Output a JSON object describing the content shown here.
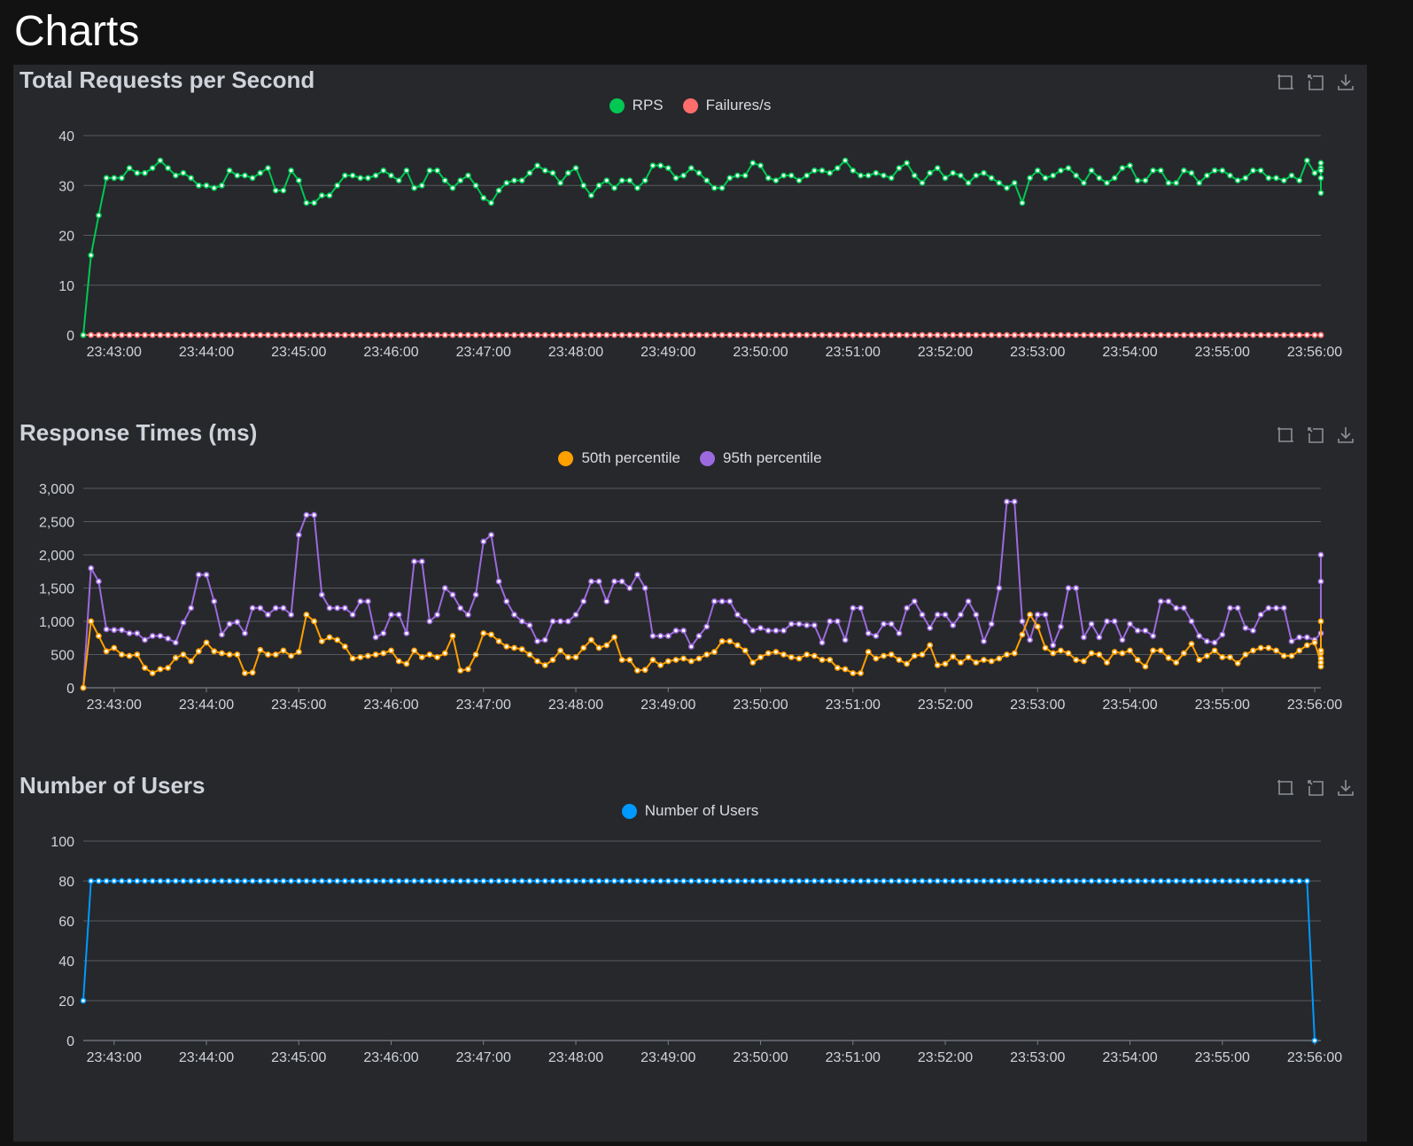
{
  "page": {
    "title": "Charts"
  },
  "colors": {
    "rps": "#00c853",
    "failures": "#ff6d6d",
    "p50": "#ff9f00",
    "p95": "#9c6ade",
    "users": "#0099ff",
    "grid": "#555a60",
    "axis": "#7a7f86"
  },
  "toolbox": [
    {
      "name": "zoom-icon",
      "label": "Zoom"
    },
    {
      "name": "zoom-reset-icon",
      "label": "Restore"
    },
    {
      "name": "download-icon",
      "label": "Save as image"
    }
  ],
  "chart_data": [
    {
      "type": "line",
      "title": "Total Requests per Second",
      "x_tick_labels": [
        "23:43:00",
        "23:44:00",
        "23:45:00",
        "23:46:00",
        "23:47:00",
        "23:48:00",
        "23:49:00",
        "23:50:00",
        "23:51:00",
        "23:52:00",
        "23:53:00",
        "23:54:00",
        "23:55:00",
        "23:56:00"
      ],
      "x_range": [
        "23:42:40",
        "23:56:04"
      ],
      "sample_interval_s": 5,
      "y_ticks": [
        "0",
        "10",
        "20",
        "30",
        "40"
      ],
      "ylim": [
        0,
        40
      ],
      "grid": true,
      "legend_position": "top-center",
      "series": [
        {
          "name": "RPS",
          "color": "#00c853",
          "values": [
            0,
            16,
            24,
            31.5,
            31.5,
            31.5,
            33.5,
            32.5,
            32.5,
            33.5,
            35,
            33.5,
            32,
            32.5,
            31.5,
            30,
            30,
            29.5,
            30,
            33,
            32,
            32,
            31.5,
            32.5,
            33.5,
            29,
            29,
            33,
            31,
            26.5,
            26.5,
            28,
            28,
            30,
            32,
            32,
            31.5,
            31.5,
            32,
            33,
            32,
            31,
            33,
            29.5,
            30,
            33,
            33,
            31,
            29.5,
            31,
            32,
            30,
            27.5,
            26.5,
            29,
            30.5,
            31,
            31,
            32.5,
            34,
            33,
            32.5,
            30.5,
            32.5,
            33.5,
            30,
            28,
            30,
            31,
            29.5,
            31,
            31,
            29.5,
            31,
            34,
            34,
            33.5,
            31.5,
            32,
            33.5,
            32.5,
            31,
            29.5,
            29.5,
            31.5,
            32,
            32,
            34.5,
            34,
            31.5,
            31,
            32,
            32,
            31,
            32,
            33,
            33,
            32.5,
            33.5,
            35,
            33,
            32,
            32,
            32.5,
            32,
            31.5,
            33.5,
            34.5,
            32,
            30.5,
            32.5,
            33.5,
            31.5,
            32.5,
            32,
            30.5,
            32,
            32.5,
            31.5,
            30.5,
            29.5,
            30.5,
            26.5,
            31.5,
            33,
            31.5,
            32,
            33,
            33.5,
            32,
            30.5,
            33,
            31.5,
            30.5,
            31.5,
            33.5,
            34,
            31,
            31,
            33,
            33,
            30.5,
            30.5,
            33,
            32.5,
            30.5,
            32,
            33,
            33,
            32,
            31,
            31.5,
            33,
            33,
            31.5,
            31.5,
            31,
            32,
            31,
            35,
            32.5,
            33.5,
            34.5,
            33,
            31.5,
            28.5
          ]
        },
        {
          "name": "Failures/s",
          "color": "#ff6d6d",
          "values": [
            0,
            0,
            0,
            0,
            0,
            0,
            0,
            0,
            0,
            0,
            0,
            0,
            0,
            0,
            0,
            0,
            0,
            0,
            0,
            0,
            0,
            0,
            0,
            0,
            0,
            0,
            0,
            0,
            0,
            0,
            0,
            0,
            0,
            0,
            0,
            0,
            0,
            0,
            0,
            0,
            0,
            0,
            0,
            0,
            0,
            0,
            0,
            0,
            0,
            0,
            0,
            0,
            0,
            0,
            0,
            0,
            0,
            0,
            0,
            0,
            0,
            0,
            0,
            0,
            0,
            0,
            0,
            0,
            0,
            0,
            0,
            0,
            0,
            0,
            0,
            0,
            0,
            0,
            0,
            0,
            0,
            0,
            0,
            0,
            0,
            0,
            0,
            0,
            0,
            0,
            0,
            0,
            0,
            0,
            0,
            0,
            0,
            0,
            0,
            0,
            0,
            0,
            0,
            0,
            0,
            0,
            0,
            0,
            0,
            0,
            0,
            0,
            0,
            0,
            0,
            0,
            0,
            0,
            0,
            0,
            0,
            0,
            0,
            0,
            0,
            0,
            0,
            0,
            0,
            0,
            0,
            0,
            0,
            0,
            0,
            0,
            0,
            0,
            0,
            0,
            0,
            0,
            0,
            0,
            0,
            0,
            0,
            0,
            0,
            0,
            0,
            0,
            0,
            0,
            0,
            0,
            0,
            0,
            0,
            0,
            0,
            0,
            0
          ]
        }
      ]
    },
    {
      "type": "line",
      "title": "Response Times (ms)",
      "x_tick_labels": [
        "23:43:00",
        "23:44:00",
        "23:45:00",
        "23:46:00",
        "23:47:00",
        "23:48:00",
        "23:49:00",
        "23:50:00",
        "23:51:00",
        "23:52:00",
        "23:53:00",
        "23:54:00",
        "23:55:00",
        "23:56:00"
      ],
      "x_range": [
        "23:42:40",
        "23:56:04"
      ],
      "sample_interval_s": 5,
      "y_ticks": [
        "0",
        "500",
        "1,000",
        "1,500",
        "2,000",
        "2,500",
        "3,000"
      ],
      "ylim": [
        0,
        3000
      ],
      "grid": true,
      "legend_position": "top-center",
      "series": [
        {
          "name": "50th percentile",
          "color": "#ff9f00",
          "values": [
            0,
            1000,
            780,
            550,
            600,
            500,
            480,
            500,
            300,
            220,
            280,
            300,
            450,
            500,
            400,
            550,
            680,
            550,
            520,
            500,
            500,
            220,
            230,
            570,
            500,
            500,
            560,
            480,
            540,
            1100,
            1000,
            700,
            760,
            720,
            620,
            440,
            460,
            480,
            500,
            520,
            560,
            400,
            360,
            560,
            460,
            500,
            460,
            520,
            780,
            260,
            280,
            500,
            820,
            800,
            700,
            620,
            600,
            580,
            500,
            400,
            340,
            420,
            560,
            460,
            460,
            600,
            720,
            600,
            640,
            760,
            420,
            420,
            260,
            270,
            420,
            340,
            400,
            420,
            440,
            400,
            440,
            500,
            540,
            700,
            700,
            640,
            560,
            380,
            460,
            520,
            540,
            500,
            460,
            440,
            500,
            480,
            420,
            420,
            300,
            280,
            220,
            220,
            540,
            440,
            480,
            500,
            420,
            360,
            480,
            500,
            640,
            340,
            360,
            470,
            380,
            460,
            380,
            420,
            400,
            440,
            500,
            520,
            800,
            1100,
            920,
            600,
            520,
            560,
            520,
            420,
            400,
            520,
            500,
            380,
            540,
            520,
            560,
            420,
            320,
            560,
            560,
            450,
            380,
            520,
            660,
            420,
            480,
            560,
            460,
            460,
            370,
            500,
            560,
            600,
            600,
            560,
            480,
            480,
            560,
            640,
            680,
            380,
            440,
            520,
            320,
            380,
            560,
            560,
            1000
          ]
        },
        {
          "name": "95th percentile",
          "color": "#9c6ade",
          "values": [
            0,
            1800,
            1600,
            880,
            870,
            870,
            820,
            820,
            720,
            780,
            780,
            740,
            680,
            980,
            1200,
            1700,
            1700,
            1300,
            800,
            960,
            990,
            820,
            1200,
            1200,
            1100,
            1200,
            1200,
            1100,
            2300,
            2600,
            2600,
            1400,
            1200,
            1200,
            1200,
            1100,
            1300,
            1300,
            760,
            820,
            1100,
            1100,
            820,
            1900,
            1900,
            1000,
            1100,
            1500,
            1400,
            1200,
            1100,
            1400,
            2200,
            2300,
            1600,
            1300,
            1100,
            1000,
            940,
            700,
            720,
            1000,
            1000,
            1000,
            1100,
            1300,
            1600,
            1600,
            1300,
            1600,
            1600,
            1500,
            1700,
            1500,
            780,
            780,
            780,
            860,
            860,
            620,
            780,
            920,
            1300,
            1300,
            1300,
            1100,
            1000,
            860,
            900,
            860,
            860,
            860,
            960,
            960,
            940,
            940,
            680,
            1000,
            1000,
            720,
            1200,
            1200,
            820,
            780,
            960,
            960,
            820,
            1200,
            1300,
            1100,
            900,
            1100,
            1100,
            940,
            1100,
            1300,
            1100,
            700,
            960,
            1500,
            2800,
            2800,
            1000,
            720,
            1100,
            1100,
            640,
            920,
            1500,
            1500,
            760,
            960,
            760,
            1000,
            1000,
            720,
            960,
            860,
            860,
            780,
            1300,
            1300,
            1200,
            1200,
            1000,
            780,
            700,
            680,
            800,
            1200,
            1200,
            900,
            860,
            1100,
            1200,
            1200,
            1200,
            700,
            760,
            760,
            720,
            820,
            1600,
            2000
          ]
        }
      ]
    },
    {
      "type": "line",
      "title": "Number of Users",
      "x_tick_labels": [
        "23:43:00",
        "23:44:00",
        "23:45:00",
        "23:46:00",
        "23:47:00",
        "23:48:00",
        "23:49:00",
        "23:50:00",
        "23:51:00",
        "23:52:00",
        "23:53:00",
        "23:54:00",
        "23:55:00",
        "23:56:00"
      ],
      "x_range": [
        "23:42:40",
        "23:56:04"
      ],
      "sample_interval_s": 5,
      "y_ticks": [
        "0",
        "20",
        "40",
        "60",
        "80",
        "100"
      ],
      "ylim": [
        0,
        100
      ],
      "grid": true,
      "legend_position": "top-center",
      "series": [
        {
          "name": "Number of Users",
          "color": "#0099ff",
          "values": [
            20,
            80,
            80,
            80,
            80,
            80,
            80,
            80,
            80,
            80,
            80,
            80,
            80,
            80,
            80,
            80,
            80,
            80,
            80,
            80,
            80,
            80,
            80,
            80,
            80,
            80,
            80,
            80,
            80,
            80,
            80,
            80,
            80,
            80,
            80,
            80,
            80,
            80,
            80,
            80,
            80,
            80,
            80,
            80,
            80,
            80,
            80,
            80,
            80,
            80,
            80,
            80,
            80,
            80,
            80,
            80,
            80,
            80,
            80,
            80,
            80,
            80,
            80,
            80,
            80,
            80,
            80,
            80,
            80,
            80,
            80,
            80,
            80,
            80,
            80,
            80,
            80,
            80,
            80,
            80,
            80,
            80,
            80,
            80,
            80,
            80,
            80,
            80,
            80,
            80,
            80,
            80,
            80,
            80,
            80,
            80,
            80,
            80,
            80,
            80,
            80,
            80,
            80,
            80,
            80,
            80,
            80,
            80,
            80,
            80,
            80,
            80,
            80,
            80,
            80,
            80,
            80,
            80,
            80,
            80,
            80,
            80,
            80,
            80,
            80,
            80,
            80,
            80,
            80,
            80,
            80,
            80,
            80,
            80,
            80,
            80,
            80,
            80,
            80,
            80,
            80,
            80,
            80,
            80,
            80,
            80,
            80,
            80,
            80,
            80,
            80,
            80,
            80,
            80,
            80,
            80,
            80,
            80,
            80,
            80,
            0
          ]
        }
      ]
    }
  ]
}
